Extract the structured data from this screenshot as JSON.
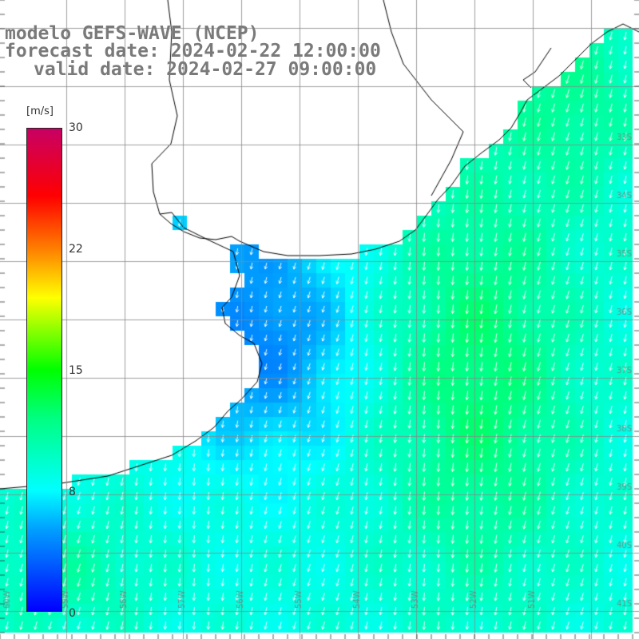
{
  "title": {
    "line1": "modelo GEFS-WAVE (NCEP)",
    "line2": "forecast date: 2024-02-22 12:00:00",
    "line3": "valid date: 2024-02-27 09:00:00"
  },
  "colorbar": {
    "unit": "[m/s]",
    "ticks": [
      "30",
      "22",
      "15",
      "8",
      "0"
    ],
    "tick_values": [
      30,
      22,
      15,
      8,
      0
    ],
    "min": 0,
    "max": 30,
    "colors": [
      "#0000ff",
      "#00a0ff",
      "#00ffff",
      "#00ff80",
      "#00ff00",
      "#ffff00",
      "#ff8000",
      "#ff0000",
      "#c80064"
    ]
  },
  "map": {
    "variable": "wind speed with direction arrows",
    "arrow_direction": "toward south-southwest",
    "lat_labels": [
      "33S",
      "34S",
      "35S",
      "36S",
      "37S",
      "38S",
      "39S",
      "40S",
      "41S"
    ],
    "lon_labels": [
      "60W",
      "59W",
      "58W",
      "57W",
      "56W",
      "55W",
      "54W",
      "53W",
      "52W",
      "51W"
    ],
    "colors": {
      "land": "#ffffff",
      "coast": "#000000",
      "grid": "#888888",
      "ocean_low": "#0055ee",
      "ocean_mid": "#00e5ff",
      "ocean_high": "#22ee55"
    }
  }
}
